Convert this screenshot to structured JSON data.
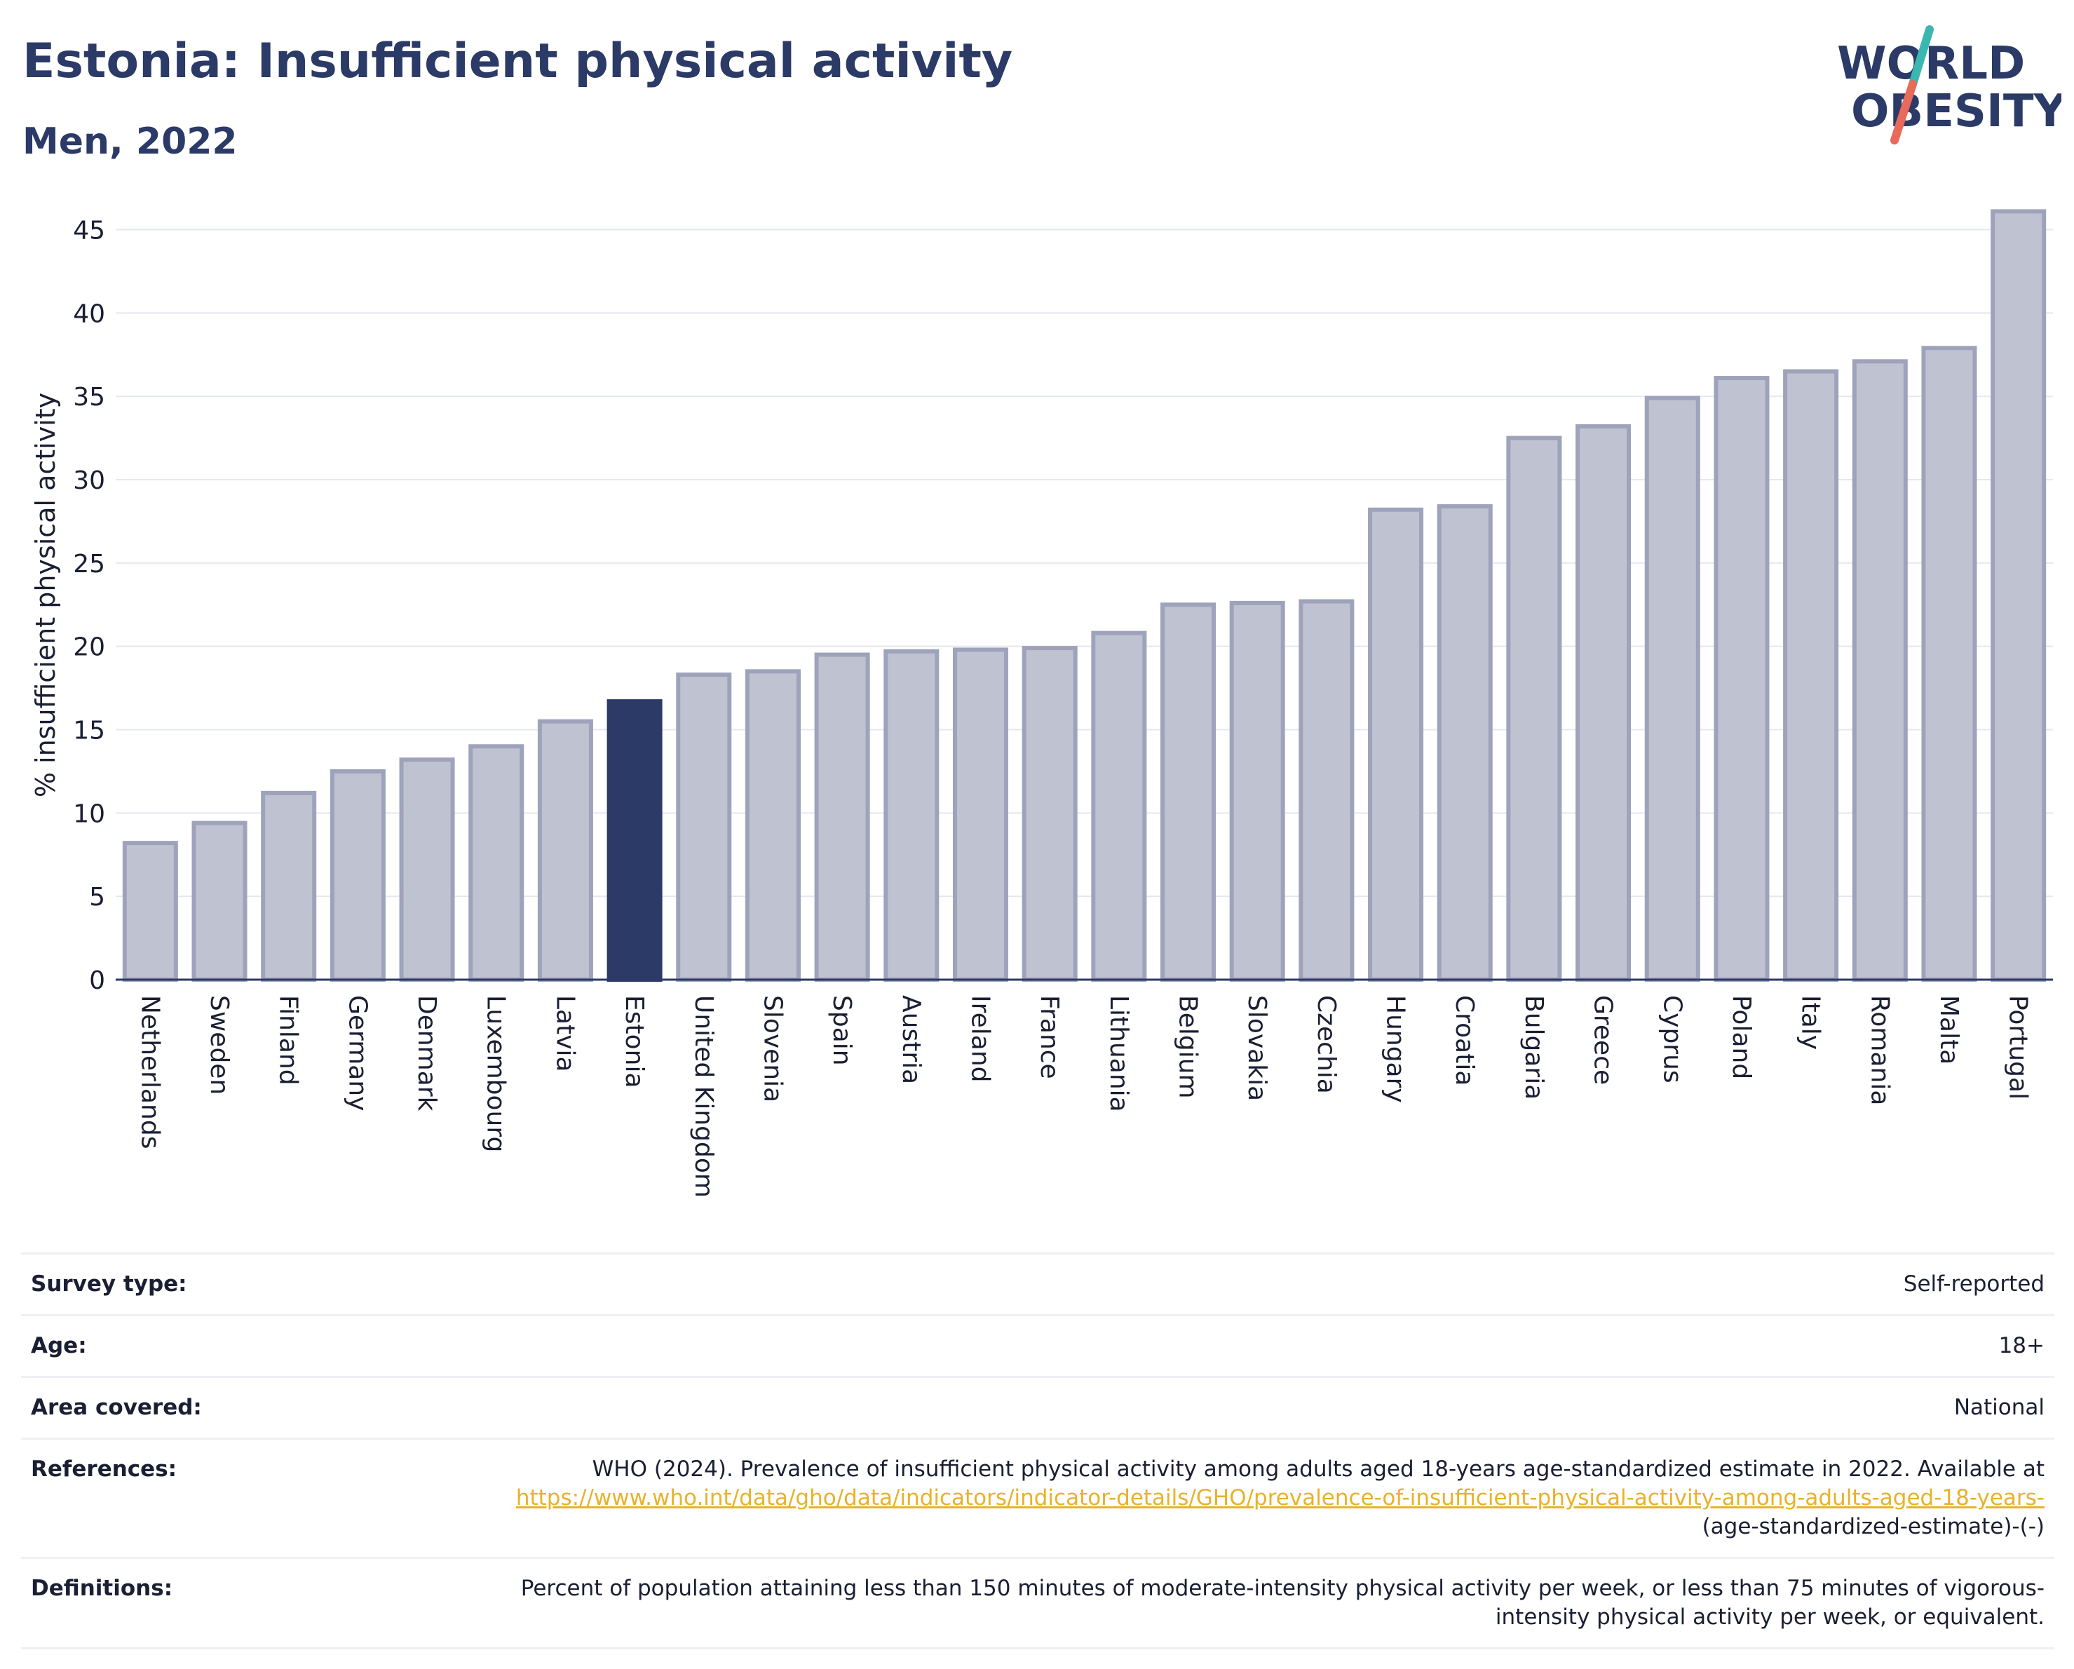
{
  "header": {
    "title": "Estonia: Insufficient physical activity",
    "subtitle": "Men, 2022"
  },
  "logo": {
    "line1": "WORLD",
    "line2": "OBESITY",
    "colors": {
      "text": "#2b3a66",
      "slash_top": "#3bb6b0",
      "slash_bottom": "#e76a5a"
    }
  },
  "colors": {
    "highlight_bar": "#2b3a66",
    "default_bar_fill": "#bfc2d0",
    "default_bar_stroke": "#9ea3bb",
    "axis": "#2b3a66",
    "grid": "#e6e8ef"
  },
  "chart_data": {
    "type": "bar",
    "ylabel": "% insufficient physical activity",
    "ylim": [
      0,
      47
    ],
    "yticks": [
      0,
      5,
      10,
      15,
      20,
      25,
      30,
      35,
      40,
      45
    ],
    "grid": true,
    "highlight": "Estonia",
    "categories": [
      "Netherlands",
      "Sweden",
      "Finland",
      "Germany",
      "Denmark",
      "Luxembourg",
      "Latvia",
      "Estonia",
      "United Kingdom",
      "Slovenia",
      "Spain",
      "Austria",
      "Ireland",
      "France",
      "Lithuania",
      "Belgium",
      "Slovakia",
      "Czechia",
      "Hungary",
      "Croatia",
      "Bulgaria",
      "Greece",
      "Cyprus",
      "Poland",
      "Italy",
      "Romania",
      "Malta",
      "Portugal"
    ],
    "values": [
      8.2,
      9.4,
      11.2,
      12.5,
      13.2,
      14.0,
      15.5,
      16.7,
      18.3,
      18.5,
      19.5,
      19.7,
      19.8,
      19.9,
      20.8,
      22.5,
      22.6,
      22.7,
      28.2,
      28.4,
      32.5,
      33.2,
      34.9,
      36.1,
      36.5,
      37.1,
      37.9,
      46.1
    ]
  },
  "info": {
    "survey_type": {
      "label": "Survey type:",
      "value": "Self-reported"
    },
    "age": {
      "label": "Age:",
      "value": "18+"
    },
    "area": {
      "label": "Area covered:",
      "value": "National"
    },
    "references": {
      "label": "References:",
      "text": "WHO (2024). Prevalence of insufficient physical activity among adults aged 18-years age-standardized estimate in 2022. Available at",
      "link": "https://www.who.int/data/gho/data/indicators/indicator-details/GHO/prevalence-of-insufficient-physical-activity-among-adults-aged-18-years-",
      "suffix": "(age-standardized-estimate)-(-)"
    },
    "definitions": {
      "label": "Definitions:",
      "value": "Percent of population attaining less than 150 minutes of moderate-intensity physical activity per week, or less than 75 minutes of vigorous-intensity physical activity per week, or equivalent."
    }
  }
}
